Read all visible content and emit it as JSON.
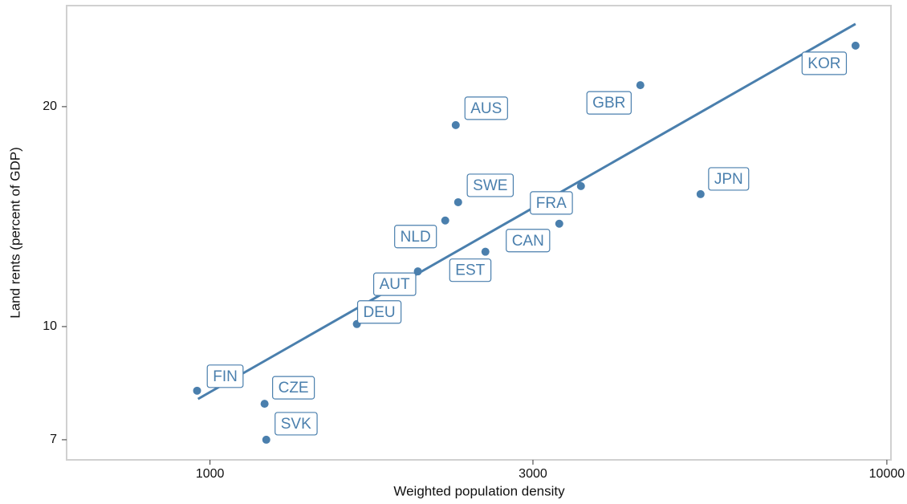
{
  "chart_data": {
    "type": "scatter",
    "x_label": "Weighted population density",
    "y_label": "Land rents (percent of GDP)",
    "log_x": true,
    "log_y": true,
    "color": "#4a7fad",
    "xlim": [
      614,
      10140
    ],
    "ylim": [
      6.57,
      27.5
    ],
    "xticks": [
      1000,
      3000,
      10000
    ],
    "yticks": [
      7,
      10,
      20
    ],
    "labels": [
      "FIN",
      "CZE",
      "SVK",
      "DEU",
      "AUT",
      "NLD",
      "SWE",
      "AUS",
      "EST",
      "CAN",
      "FRA",
      "GBR",
      "JPN",
      "KOR"
    ],
    "x": [
      957,
      1204,
      1211,
      1648,
      2028,
      2226,
      2326,
      2307,
      2552,
      3281,
      3532,
      4323,
      5306,
      8989
    ],
    "values": [
      8.17,
      7.84,
      7.0,
      10.08,
      11.9,
      13.97,
      14.8,
      18.87,
      12.66,
      13.83,
      15.57,
      21.4,
      15.18,
      24.24
    ],
    "fit_line": {
      "x": [
        960,
        8989
      ],
      "values": [
        7.96,
        25.96
      ]
    }
  }
}
